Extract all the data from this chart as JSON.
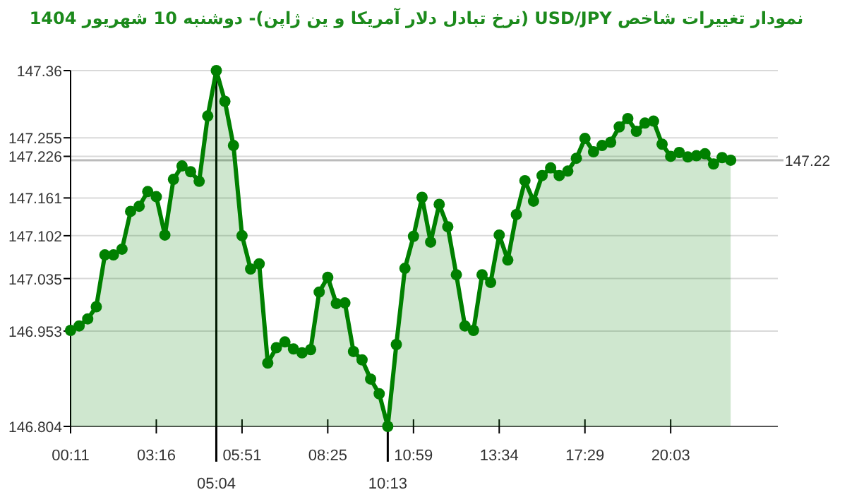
{
  "chart_data": {
    "type": "area",
    "title": "نمودار تغییرات شاخص USD/JPY (نرخ تبادل دلار آمریکا و ین ژاپن)- دوشنبه  10 شهریور 1404",
    "categories": [
      "00:11",
      null,
      null,
      null,
      null,
      null,
      null,
      null,
      null,
      null,
      "03:16",
      null,
      null,
      null,
      null,
      null,
      null,
      null,
      null,
      null,
      "05:51",
      null,
      null,
      null,
      null,
      null,
      null,
      null,
      null,
      null,
      "08:25",
      null,
      null,
      null,
      null,
      null,
      null,
      null,
      null,
      null,
      "10:59",
      null,
      null,
      null,
      null,
      null,
      null,
      null,
      null,
      null,
      "13:34",
      null,
      null,
      null,
      null,
      null,
      null,
      null,
      null,
      null,
      "17:29",
      null,
      null,
      null,
      null,
      null,
      null,
      null,
      null,
      null,
      "20:03",
      null,
      null,
      null,
      null,
      null,
      null,
      null
    ],
    "series": [
      {
        "color": "#008000",
        "values": [
          146.954,
          146.961,
          146.972,
          146.991,
          147.072,
          147.072,
          147.081,
          147.14,
          147.148,
          147.171,
          147.163,
          147.103,
          147.19,
          147.211,
          147.202,
          147.187,
          147.289,
          147.36,
          147.312,
          147.243,
          147.102,
          147.05,
          147.058,
          146.903,
          146.927,
          146.936,
          146.925,
          146.919,
          146.924,
          147.014,
          147.037,
          146.996,
          146.997,
          146.921,
          146.908,
          146.878,
          146.855,
          146.804,
          146.932,
          147.051,
          147.101,
          147.162,
          147.092,
          147.151,
          147.116,
          147.041,
          146.961,
          146.954,
          147.041,
          147.029,
          147.103,
          147.064,
          147.135,
          147.188,
          147.156,
          147.196,
          147.208,
          147.196,
          147.203,
          147.223,
          147.254,
          147.233,
          147.243,
          147.248,
          147.272,
          147.285,
          147.265,
          147.278,
          147.281,
          147.245,
          147.226,
          147.232,
          147.225,
          147.227,
          147.23,
          147.214,
          147.224,
          147.22
        ]
      }
    ],
    "ylim": [
      146.804,
      147.36
    ],
    "yticks": [
      146.804,
      146.953,
      147.035,
      147.102,
      147.161,
      147.226,
      147.255,
      147.36
    ],
    "ref_lines": [
      {
        "axis": "y",
        "value": 147.22,
        "label": "147.22"
      }
    ],
    "annotations": [
      {
        "text": "05:04",
        "y": 147.36
      },
      {
        "text": "10:13",
        "y": 146.804
      }
    ],
    "grid": "y",
    "marker": "circle",
    "line_style": "solid"
  }
}
